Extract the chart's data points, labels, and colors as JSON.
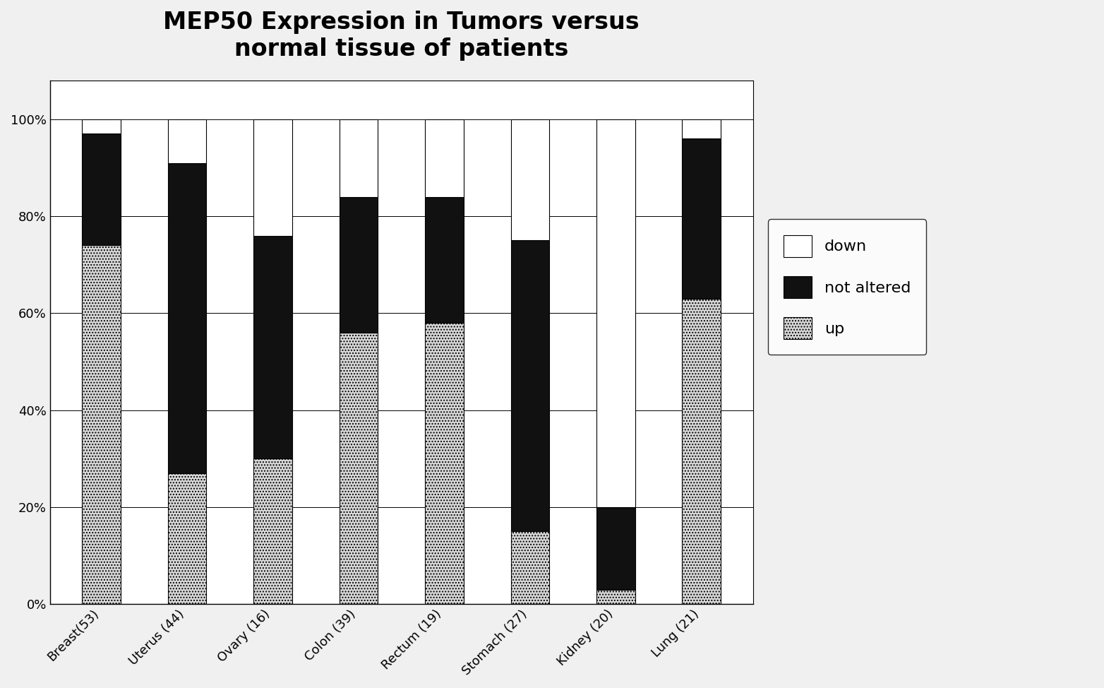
{
  "categories": [
    "Breast(53)",
    "Uterus (44)",
    "Ovary (16)",
    "Colon (39)",
    "Rectum (19)",
    "Stomach (27)",
    "Kidney (20)",
    "Lung (21)"
  ],
  "up": [
    0.74,
    0.27,
    0.3,
    0.56,
    0.58,
    0.15,
    0.03,
    0.63
  ],
  "not_altered": [
    0.23,
    0.64,
    0.46,
    0.28,
    0.26,
    0.6,
    0.17,
    0.33
  ],
  "down": [
    0.03,
    0.09,
    0.24,
    0.16,
    0.16,
    0.25,
    0.8,
    0.04
  ],
  "color_not_altered": "#111111",
  "color_down": "#ffffff",
  "title_line1": "MEP50 Expression in Tumors versus",
  "title_line2": "normal tissue of patients",
  "title_fontsize": 24,
  "tick_fontsize": 13,
  "legend_fontsize": 16,
  "bar_width": 0.45,
  "ylim": [
    0,
    1.08
  ],
  "yticks": [
    0.0,
    0.2,
    0.4,
    0.6,
    0.8,
    1.0
  ],
  "ytick_labels": [
    "0%",
    "20%",
    "40%",
    "60%",
    "80%",
    "100%"
  ],
  "bg_color": "#f0f0f0",
  "plot_bg_color": "#ffffff"
}
